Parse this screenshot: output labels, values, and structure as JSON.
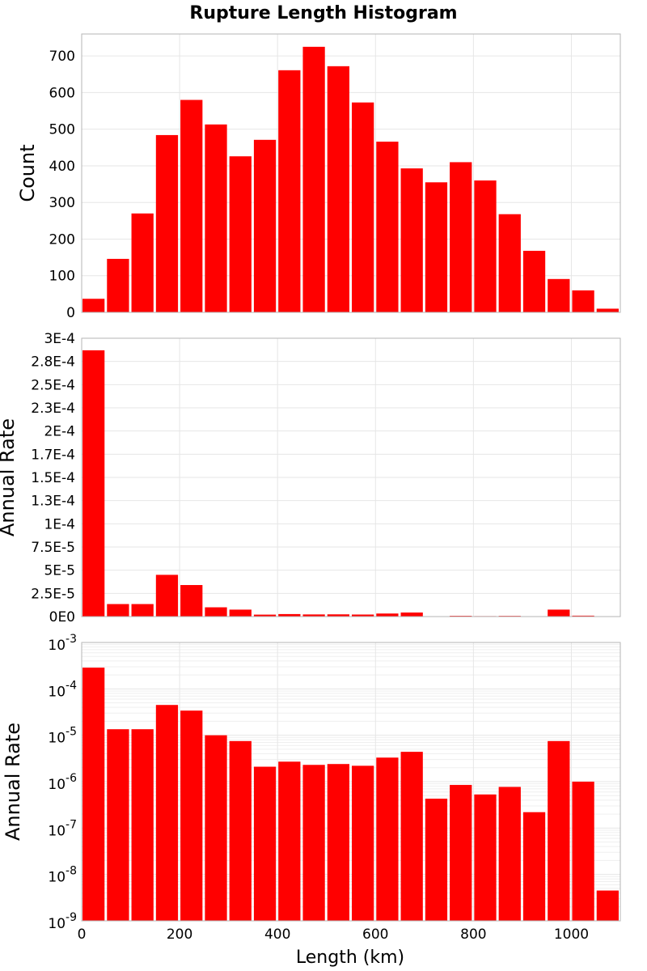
{
  "chart_data": {
    "type": "bar",
    "title": "Rupture Length Histogram",
    "xlabel": "Length (km)",
    "xlim": [
      0,
      1100
    ],
    "bin_width": 50,
    "bin_starts": [
      0,
      50,
      100,
      150,
      200,
      250,
      300,
      350,
      400,
      450,
      500,
      550,
      600,
      650,
      700,
      750,
      800,
      850,
      900,
      950,
      1000,
      1050
    ],
    "x_ticks": [
      "0",
      "200",
      "400",
      "600",
      "800",
      "1000"
    ],
    "x_tick_values": [
      0,
      200,
      400,
      600,
      800,
      1000
    ],
    "bar_color": "#ff0000",
    "panels": [
      {
        "ylabel": "Count",
        "scale": "linear",
        "ylim": [
          0,
          760
        ],
        "y_ticks": [
          "0",
          "100",
          "200",
          "300",
          "400",
          "500",
          "600",
          "700"
        ],
        "y_tick_values": [
          0,
          100,
          200,
          300,
          400,
          500,
          600,
          700
        ],
        "values": [
          37,
          146,
          270,
          484,
          580,
          513,
          426,
          471,
          661,
          725,
          672,
          573,
          466,
          393,
          355,
          410,
          360,
          268,
          168,
          91,
          60,
          10
        ]
      },
      {
        "ylabel": "Annual Rate",
        "scale": "linear",
        "ylim": [
          0,
          0.0003
        ],
        "y_ticks": [
          "0E0",
          "2.5E-5",
          "5E-5",
          "7.5E-5",
          "1E-4",
          "1.3E-4",
          "1.5E-4",
          "1.7E-4",
          "2E-4",
          "2.3E-4",
          "2.5E-4",
          "2.8E-4",
          "3E-4"
        ],
        "y_tick_values": [
          0,
          2.5e-05,
          5e-05,
          7.5e-05,
          0.0001,
          0.000125,
          0.00015,
          0.000175,
          0.0002,
          0.000225,
          0.00025,
          0.000275,
          0.0003
        ],
        "values": [
          0.000287,
          1.35e-05,
          1.35e-05,
          4.5e-05,
          3.4e-05,
          1e-05,
          7.5e-06,
          2.1e-06,
          2.7e-06,
          2.3e-06,
          2.4e-06,
          2.2e-06,
          3.3e-06,
          4.4e-06,
          4.3e-07,
          8.5e-07,
          5.3e-07,
          7.7e-07,
          2.2e-07,
          7.5e-06,
          1e-06,
          4.5e-09
        ]
      },
      {
        "ylabel": "Annual Rate",
        "scale": "log",
        "ylim_exp": [
          -9,
          -3
        ],
        "y_ticks": [
          {
            "base": "10",
            "exp": "-9"
          },
          {
            "base": "10",
            "exp": "-8"
          },
          {
            "base": "10",
            "exp": "-7"
          },
          {
            "base": "10",
            "exp": "-6"
          },
          {
            "base": "10",
            "exp": "-5"
          },
          {
            "base": "10",
            "exp": "-4"
          },
          {
            "base": "10",
            "exp": "-3"
          }
        ],
        "y_tick_exps": [
          -9,
          -8,
          -7,
          -6,
          -5,
          -4,
          -3
        ],
        "values": [
          0.000287,
          1.35e-05,
          1.35e-05,
          4.5e-05,
          3.4e-05,
          1e-05,
          7.5e-06,
          2.1e-06,
          2.7e-06,
          2.3e-06,
          2.4e-06,
          2.2e-06,
          3.3e-06,
          4.4e-06,
          4.3e-07,
          8.5e-07,
          5.3e-07,
          7.7e-07,
          2.2e-07,
          7.5e-06,
          1e-06,
          4.5e-09
        ]
      }
    ]
  }
}
